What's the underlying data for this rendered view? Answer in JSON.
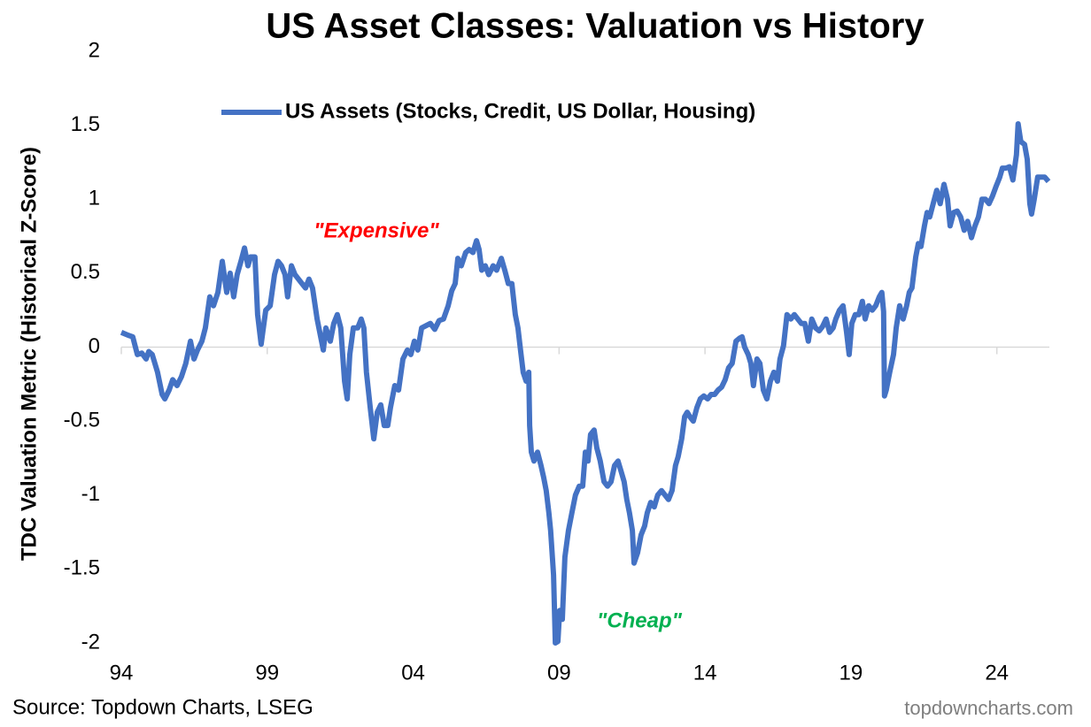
{
  "chart_data": {
    "type": "line",
    "title": "US Asset Classes: Valuation vs History",
    "y_label": "TDC Valuation Metric (Historical Z-Score)",
    "source": "Source: Topdown Charts, LSEG",
    "watermark": "topdowncharts.com",
    "annotations": [
      {
        "text": "\"Expensive\"",
        "color": "#ff0000"
      },
      {
        "text": "\"Cheap\"",
        "color": "#00b050"
      }
    ],
    "legend": "top-left",
    "grid": false,
    "xlim": [
      1994,
      2025.8
    ],
    "xticks": [
      {
        "value": 1994,
        "label": "94"
      },
      {
        "value": 1999,
        "label": "99"
      },
      {
        "value": 2004,
        "label": "04"
      },
      {
        "value": 2009,
        "label": "09"
      },
      {
        "value": 2014,
        "label": "14"
      },
      {
        "value": 2019,
        "label": "19"
      },
      {
        "value": 2024,
        "label": "24"
      }
    ],
    "ylim": [
      -2,
      2
    ],
    "yticks": [
      -2,
      -1.5,
      -1,
      -0.5,
      0,
      0.5,
      1,
      1.5,
      2
    ],
    "x": [
      1994.0,
      1994.24,
      1994.39,
      1994.55,
      1994.7,
      1994.85,
      1994.94,
      1995.06,
      1995.24,
      1995.4,
      1995.49,
      1995.64,
      1995.76,
      1995.91,
      1996.06,
      1996.21,
      1996.37,
      1996.49,
      1996.61,
      1996.76,
      1996.88,
      1997.03,
      1997.16,
      1997.31,
      1997.46,
      1997.61,
      1997.73,
      1997.85,
      1997.97,
      1998.1,
      1998.22,
      1998.34,
      1998.43,
      1998.58,
      1998.67,
      1998.79,
      1998.95,
      1999.1,
      1999.25,
      1999.37,
      1999.49,
      1999.61,
      1999.7,
      1999.83,
      1999.95,
      2000.19,
      2000.31,
      2000.43,
      2000.55,
      2000.71,
      2000.92,
      2001.01,
      2001.16,
      2001.28,
      2001.4,
      2001.52,
      2001.65,
      2001.74,
      2001.83,
      2001.95,
      2002.1,
      2002.22,
      2002.31,
      2002.4,
      2002.53,
      2002.65,
      2002.77,
      2002.89,
      2003.01,
      2003.13,
      2003.22,
      2003.37,
      2003.5,
      2003.65,
      2003.8,
      2003.92,
      2004.04,
      2004.16,
      2004.29,
      2004.59,
      2004.74,
      2004.89,
      2005.04,
      2005.2,
      2005.32,
      2005.44,
      2005.53,
      2005.65,
      2005.8,
      2005.92,
      2006.05,
      2006.17,
      2006.26,
      2006.35,
      2006.47,
      2006.59,
      2006.74,
      2006.86,
      2007.02,
      2007.14,
      2007.26,
      2007.38,
      2007.5,
      2007.59,
      2007.68,
      2007.77,
      2007.87,
      2007.96,
      2007.99,
      2008.05,
      2008.14,
      2008.26,
      2008.38,
      2008.47,
      2008.56,
      2008.65,
      2008.71,
      2008.81,
      2008.87,
      2008.96,
      2009.02,
      2009.11,
      2009.2,
      2009.32,
      2009.44,
      2009.56,
      2009.69,
      2009.81,
      2009.9,
      2009.99,
      2010.08,
      2010.2,
      2010.29,
      2010.41,
      2010.54,
      2010.66,
      2010.78,
      2010.9,
      2011.02,
      2011.11,
      2011.23,
      2011.32,
      2011.41,
      2011.51,
      2011.57,
      2011.69,
      2011.81,
      2011.93,
      2012.02,
      2012.14,
      2012.26,
      2012.38,
      2012.51,
      2012.63,
      2012.75,
      2012.87,
      2012.99,
      2013.08,
      2013.2,
      2013.3,
      2013.39,
      2013.48,
      2013.6,
      2013.72,
      2013.84,
      2013.96,
      2014.09,
      2014.21,
      2014.33,
      2014.45,
      2014.57,
      2014.69,
      2014.81,
      2014.93,
      2015.06,
      2015.18,
      2015.27,
      2015.36,
      2015.48,
      2015.57,
      2015.66,
      2015.78,
      2015.88,
      2016.0,
      2016.12,
      2016.24,
      2016.36,
      2016.48,
      2016.57,
      2016.69,
      2016.81,
      2016.94,
      2017.06,
      2017.18,
      2017.3,
      2017.42,
      2017.54,
      2017.66,
      2017.79,
      2017.91,
      2018.03,
      2018.15,
      2018.27,
      2018.39,
      2018.48,
      2018.61,
      2018.73,
      2018.85,
      2018.94,
      2019.03,
      2019.15,
      2019.27,
      2019.39,
      2019.49,
      2019.61,
      2019.73,
      2019.85,
      2019.97,
      2020.06,
      2020.12,
      2020.15,
      2020.21,
      2020.33,
      2020.46,
      2020.55,
      2020.67,
      2020.79,
      2020.91,
      2021.0,
      2021.09,
      2021.22,
      2021.31,
      2021.4,
      2021.52,
      2021.61,
      2021.7,
      2021.82,
      2021.94,
      2022.06,
      2022.19,
      2022.31,
      2022.4,
      2022.52,
      2022.64,
      2022.76,
      2022.88,
      2023.0,
      2023.13,
      2023.25,
      2023.37,
      2023.49,
      2023.61,
      2023.73,
      2023.85,
      2023.98,
      2024.1,
      2024.19,
      2024.31,
      2024.43,
      2024.55,
      2024.67,
      2024.73,
      2024.82,
      2024.95,
      2025.04,
      2025.13,
      2025.19,
      2025.28,
      2025.4,
      2025.52,
      2025.64,
      2025.77
    ],
    "series": [
      {
        "name": "US Assets (Stocks, Credit, US Dollar, Housing)",
        "color": "#4472c4",
        "values": [
          0.1,
          0.08,
          0.07,
          -0.05,
          -0.04,
          -0.08,
          -0.03,
          -0.05,
          -0.17,
          -0.32,
          -0.35,
          -0.29,
          -0.22,
          -0.26,
          -0.2,
          -0.11,
          0.04,
          -0.08,
          -0.02,
          0.04,
          0.13,
          0.34,
          0.28,
          0.37,
          0.58,
          0.37,
          0.5,
          0.34,
          0.49,
          0.58,
          0.67,
          0.55,
          0.61,
          0.61,
          0.22,
          0.02,
          0.25,
          0.28,
          0.49,
          0.58,
          0.55,
          0.49,
          0.34,
          0.55,
          0.49,
          0.43,
          0.4,
          0.46,
          0.4,
          0.19,
          -0.02,
          0.13,
          0.04,
          0.16,
          0.22,
          0.13,
          -0.23,
          -0.35,
          -0.05,
          0.13,
          0.13,
          0.19,
          0.13,
          -0.17,
          -0.41,
          -0.62,
          -0.44,
          -0.39,
          -0.53,
          -0.53,
          -0.41,
          -0.26,
          -0.29,
          -0.08,
          -0.02,
          -0.05,
          0.04,
          -0.02,
          0.13,
          0.16,
          0.12,
          0.18,
          0.19,
          0.28,
          0.38,
          0.43,
          0.6,
          0.55,
          0.64,
          0.66,
          0.64,
          0.72,
          0.66,
          0.52,
          0.55,
          0.49,
          0.55,
          0.52,
          0.6,
          0.52,
          0.43,
          0.43,
          0.22,
          0.13,
          -0.02,
          -0.17,
          -0.23,
          -0.17,
          -0.53,
          -0.71,
          -0.77,
          -0.71,
          -0.8,
          -0.88,
          -0.97,
          -1.12,
          -1.24,
          -1.54,
          -2.0,
          -1.99,
          -1.78,
          -1.84,
          -1.42,
          -1.24,
          -1.12,
          -1.0,
          -0.94,
          -0.94,
          -0.71,
          -0.77,
          -0.59,
          -0.56,
          -0.68,
          -0.77,
          -0.91,
          -0.94,
          -0.91,
          -0.8,
          -0.77,
          -0.83,
          -0.91,
          -1.03,
          -1.12,
          -1.24,
          -1.46,
          -1.39,
          -1.27,
          -1.21,
          -1.12,
          -1.05,
          -1.08,
          -1.0,
          -0.97,
          -1.0,
          -1.03,
          -0.97,
          -0.8,
          -0.74,
          -0.62,
          -0.47,
          -0.44,
          -0.47,
          -0.5,
          -0.41,
          -0.35,
          -0.33,
          -0.35,
          -0.32,
          -0.32,
          -0.29,
          -0.27,
          -0.22,
          -0.14,
          -0.11,
          0.04,
          0.06,
          0.07,
          0.0,
          -0.05,
          -0.11,
          -0.26,
          -0.08,
          -0.11,
          -0.29,
          -0.35,
          -0.23,
          -0.17,
          -0.23,
          -0.08,
          0.01,
          0.22,
          0.19,
          0.22,
          0.19,
          0.16,
          0.16,
          0.04,
          0.19,
          0.13,
          0.11,
          0.14,
          0.19,
          0.1,
          0.13,
          0.19,
          0.25,
          0.28,
          0.1,
          -0.05,
          0.16,
          0.22,
          0.22,
          0.31,
          0.19,
          0.28,
          0.25,
          0.28,
          0.34,
          0.37,
          0.24,
          -0.33,
          -0.29,
          -0.17,
          -0.05,
          0.13,
          0.28,
          0.19,
          0.28,
          0.37,
          0.4,
          0.61,
          0.7,
          0.68,
          0.82,
          0.91,
          0.88,
          0.97,
          1.06,
          0.97,
          1.1,
          1.0,
          0.82,
          0.91,
          0.92,
          0.88,
          0.79,
          0.85,
          0.74,
          0.82,
          0.88,
          1.0,
          1.0,
          0.97,
          1.02,
          1.09,
          1.15,
          1.21,
          1.21,
          1.22,
          1.13,
          1.3,
          1.51,
          1.39,
          1.37,
          1.27,
          0.97,
          0.9,
          1.0,
          1.15,
          1.15,
          1.15,
          1.12
        ]
      }
    ]
  }
}
